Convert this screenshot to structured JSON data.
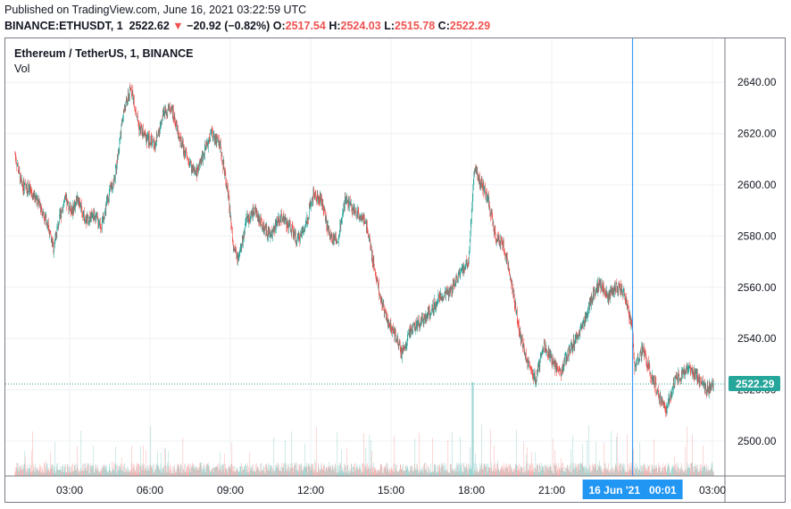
{
  "header": {
    "published": "Published on TradingView.com, June 16, 2021 03:22:59 UTC",
    "symbol": "BINANCE:ETHUSDT, 1",
    "price": "2522.62",
    "arrow": "▼",
    "change": "−20.92 (−0.82%)",
    "o_label": "O:",
    "o_value": "2517.54",
    "h_label": "H:",
    "h_value": "2524.03",
    "l_label": "L:",
    "l_value": "2515.78",
    "c_label": "C:",
    "c_value": "2522.29"
  },
  "legend": {
    "title": "Ethereum / TetherUS, 1, BINANCE",
    "volume": "Vol"
  },
  "colors": {
    "up": "#26a69a",
    "down": "#ef5350",
    "crosshair": "#2196f3",
    "last_price": "#26a69a"
  },
  "crosshair_label": "16 Jun '21   00:01",
  "last_price_label": "2522.29",
  "chart_data": {
    "type": "candlestick",
    "interval": "1 minute",
    "ylim": [
      2486,
      2648
    ],
    "y_ticks": [
      2500,
      2520,
      2540,
      2560,
      2580,
      2600,
      2620,
      2640
    ],
    "y_tick_labels": [
      "2500.00",
      "2520.00",
      "2540.00",
      "2560.00",
      "2580.00",
      "2600.00",
      "2620.00",
      "2640.00"
    ],
    "x_tick_labels": [
      "03:00",
      "06:00",
      "09:00",
      "12:00",
      "15:00",
      "18:00",
      "21:00",
      "",
      "03:00"
    ],
    "x_tick_hours": [
      3,
      6,
      9,
      12,
      15,
      18,
      21,
      24,
      27
    ],
    "x_range_hours": [
      0.96,
      27.4
    ],
    "last_price": 2522.29,
    "crosshair_hour": 24.02,
    "close_path": [
      [
        0.96,
        2612
      ],
      [
        1.2,
        2600
      ],
      [
        1.5,
        2598
      ],
      [
        1.9,
        2592
      ],
      [
        2.2,
        2584
      ],
      [
        2.4,
        2575
      ],
      [
        2.6,
        2586
      ],
      [
        2.8,
        2594
      ],
      [
        3.1,
        2590
      ],
      [
        3.3,
        2595
      ],
      [
        3.6,
        2586
      ],
      [
        3.9,
        2588
      ],
      [
        4.2,
        2584
      ],
      [
        4.4,
        2594
      ],
      [
        4.7,
        2604
      ],
      [
        5.0,
        2628
      ],
      [
        5.3,
        2638
      ],
      [
        5.6,
        2622
      ],
      [
        5.9,
        2618
      ],
      [
        6.2,
        2616
      ],
      [
        6.5,
        2628
      ],
      [
        6.8,
        2630
      ],
      [
        7.1,
        2618
      ],
      [
        7.4,
        2610
      ],
      [
        7.7,
        2604
      ],
      [
        8.0,
        2612
      ],
      [
        8.3,
        2620
      ],
      [
        8.6,
        2616
      ],
      [
        8.9,
        2598
      ],
      [
        9.1,
        2576
      ],
      [
        9.3,
        2570
      ],
      [
        9.6,
        2586
      ],
      [
        9.9,
        2590
      ],
      [
        10.2,
        2584
      ],
      [
        10.5,
        2580
      ],
      [
        10.9,
        2588
      ],
      [
        11.2,
        2584
      ],
      [
        11.5,
        2578
      ],
      [
        11.8,
        2584
      ],
      [
        12.1,
        2596
      ],
      [
        12.4,
        2594
      ],
      [
        12.7,
        2580
      ],
      [
        13.0,
        2578
      ],
      [
        13.3,
        2595
      ],
      [
        13.6,
        2590
      ],
      [
        13.9,
        2588
      ],
      [
        14.1,
        2584
      ],
      [
        14.3,
        2572
      ],
      [
        14.6,
        2556
      ],
      [
        14.9,
        2546
      ],
      [
        15.2,
        2540
      ],
      [
        15.4,
        2534
      ],
      [
        15.7,
        2542
      ],
      [
        16.0,
        2546
      ],
      [
        16.4,
        2550
      ],
      [
        16.8,
        2556
      ],
      [
        17.2,
        2558
      ],
      [
        17.6,
        2566
      ],
      [
        17.9,
        2570
      ],
      [
        18.1,
        2606
      ],
      [
        18.3,
        2602
      ],
      [
        18.6,
        2595
      ],
      [
        18.9,
        2580
      ],
      [
        19.2,
        2576
      ],
      [
        19.5,
        2562
      ],
      [
        19.8,
        2542
      ],
      [
        20.1,
        2530
      ],
      [
        20.4,
        2524
      ],
      [
        20.7,
        2538
      ],
      [
        21.0,
        2532
      ],
      [
        21.3,
        2526
      ],
      [
        21.6,
        2534
      ],
      [
        21.9,
        2540
      ],
      [
        22.2,
        2546
      ],
      [
        22.5,
        2556
      ],
      [
        22.8,
        2562
      ],
      [
        23.1,
        2556
      ],
      [
        23.4,
        2560
      ],
      [
        23.7,
        2558
      ],
      [
        24.0,
        2544
      ],
      [
        24.1,
        2528
      ],
      [
        24.4,
        2536
      ],
      [
        24.7,
        2526
      ],
      [
        25.0,
        2518
      ],
      [
        25.3,
        2512
      ],
      [
        25.6,
        2524
      ],
      [
        25.9,
        2526
      ],
      [
        26.2,
        2528
      ],
      [
        26.5,
        2524
      ],
      [
        26.8,
        2520
      ],
      [
        27.05,
        2522
      ]
    ]
  }
}
